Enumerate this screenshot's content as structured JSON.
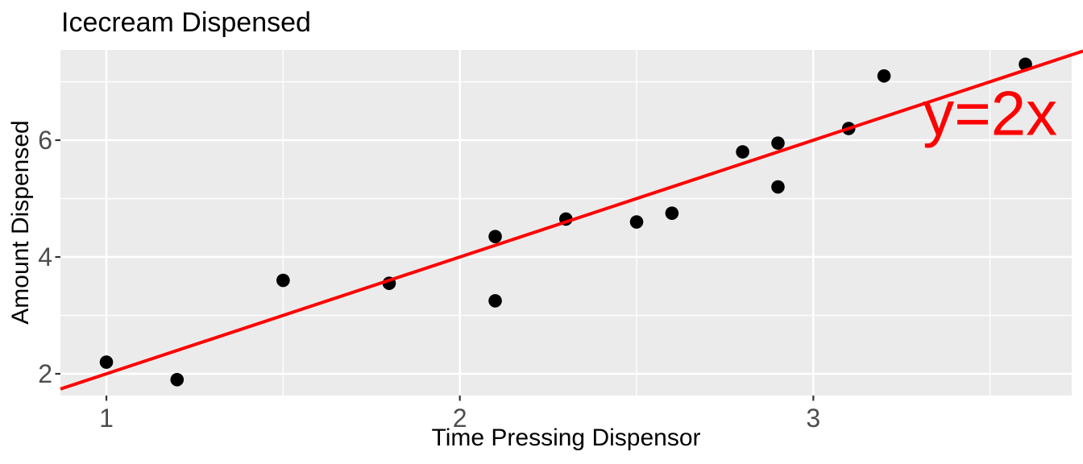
{
  "chart_data": {
    "type": "scatter",
    "title": "Icecream Dispensed",
    "xlabel": "Time Pressing Dispensor",
    "ylabel": "Amount Dispensed",
    "xlim": [
      0.87,
      3.731
    ],
    "ylim": [
      1.628,
      7.545
    ],
    "x_ticks": [
      1,
      2,
      3
    ],
    "y_ticks": [
      2,
      4,
      6
    ],
    "x_minor_gridlines": [
      1.5,
      2.5,
      3.5
    ],
    "y_minor_gridlines": [
      3,
      5,
      7
    ],
    "grid": "on",
    "legend_position": "none",
    "points": [
      {
        "x": 1.0,
        "y": 2.2
      },
      {
        "x": 1.2,
        "y": 1.9
      },
      {
        "x": 1.5,
        "y": 3.6
      },
      {
        "x": 1.8,
        "y": 3.55
      },
      {
        "x": 2.1,
        "y": 4.35
      },
      {
        "x": 2.1,
        "y": 3.25
      },
      {
        "x": 2.3,
        "y": 4.65
      },
      {
        "x": 2.5,
        "y": 4.6
      },
      {
        "x": 2.6,
        "y": 4.75
      },
      {
        "x": 2.8,
        "y": 5.8
      },
      {
        "x": 2.9,
        "y": 5.95
      },
      {
        "x": 2.9,
        "y": 5.2
      },
      {
        "x": 3.1,
        "y": 6.2
      },
      {
        "x": 3.2,
        "y": 7.1
      },
      {
        "x": 3.6,
        "y": 7.3
      }
    ],
    "line": {
      "label": "y=2x",
      "slope": 2,
      "intercept": 0,
      "color": "#ff0000"
    },
    "annotation": {
      "text": "y=2x",
      "x": 3.5,
      "y": 6.45,
      "color": "#ff0000"
    },
    "colors": {
      "panel_background": "#ebebeb",
      "gridline": "#ffffff",
      "point": "#000000",
      "tick_mark": "#333333",
      "tick_label": "#4d4d4d",
      "axis_title": "#000000",
      "title": "#000000"
    }
  }
}
